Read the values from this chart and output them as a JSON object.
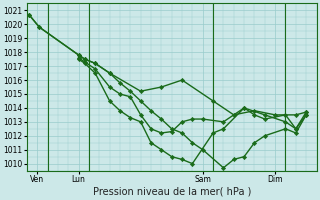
{
  "xlabel": "Pression niveau de la mer( hPa )",
  "bg_color": "#cce8e8",
  "grid_color": "#99cccc",
  "line_color": "#1a6b1a",
  "ylim": [
    1009.5,
    1021.5
  ],
  "yticks": [
    1010,
    1011,
    1012,
    1013,
    1014,
    1015,
    1016,
    1017,
    1018,
    1019,
    1020,
    1021
  ],
  "xlim": [
    0,
    14.0
  ],
  "day_labels": [
    "Ven",
    "Lun",
    "Sam",
    "Dim"
  ],
  "day_positions": [
    0.5,
    2.5,
    8.5,
    12.0
  ],
  "vline_positions": [
    1.0,
    3.0,
    9.0,
    12.5
  ],
  "lines": [
    {
      "x": [
        0.1,
        0.6,
        2.5,
        2.8,
        3.3,
        4.0,
        5.5,
        6.5,
        7.5,
        9.0,
        10.0,
        11.0,
        12.0,
        13.0,
        13.5
      ],
      "y": [
        1020.7,
        1019.8,
        1017.8,
        1017.5,
        1017.2,
        1016.5,
        1015.2,
        1015.5,
        1016.0,
        1014.5,
        1013.5,
        1013.8,
        1013.5,
        1013.5,
        1013.7
      ],
      "linewidth": 1.0
    },
    {
      "x": [
        0.1,
        0.6,
        2.5,
        2.8,
        3.3,
        4.0,
        4.5,
        5.0,
        5.5,
        6.0,
        6.5,
        7.0,
        7.5,
        8.0,
        8.5,
        9.5,
        10.0,
        10.5,
        11.0,
        11.5,
        12.5,
        13.0,
        13.5
      ],
      "y": [
        1020.7,
        1019.8,
        1017.8,
        1017.5,
        1017.2,
        1016.5,
        1015.8,
        1015.2,
        1014.5,
        1013.8,
        1013.2,
        1012.5,
        1012.2,
        1011.5,
        1011.0,
        1009.7,
        1010.3,
        1010.5,
        1011.5,
        1012.0,
        1012.5,
        1012.2,
        1013.5
      ],
      "linewidth": 1.0
    },
    {
      "x": [
        2.5,
        2.8,
        3.3,
        4.0,
        4.5,
        5.0,
        5.5,
        6.0,
        6.5,
        7.0,
        7.5,
        8.0,
        8.5,
        9.5,
        10.5,
        11.0,
        11.5,
        12.5,
        13.0,
        13.5
      ],
      "y": [
        1017.6,
        1017.3,
        1016.8,
        1015.5,
        1015.0,
        1014.8,
        1013.5,
        1012.5,
        1012.2,
        1012.3,
        1013.0,
        1013.2,
        1013.2,
        1013.0,
        1014.0,
        1013.5,
        1013.2,
        1013.5,
        1012.5,
        1013.5
      ],
      "linewidth": 1.0
    },
    {
      "x": [
        2.5,
        2.8,
        3.3,
        4.0,
        4.5,
        5.0,
        5.5,
        6.0,
        6.5,
        7.0,
        7.5,
        8.0,
        9.0,
        9.5,
        10.5,
        11.5,
        12.5,
        13.0,
        13.5
      ],
      "y": [
        1017.5,
        1017.2,
        1016.5,
        1014.5,
        1013.8,
        1013.3,
        1013.0,
        1011.5,
        1011.0,
        1010.5,
        1010.3,
        1010.0,
        1012.2,
        1012.5,
        1014.0,
        1013.5,
        1013.0,
        1012.5,
        1013.7
      ],
      "linewidth": 1.0
    }
  ],
  "tick_fontsize": 5.5,
  "label_fontsize": 7.0
}
